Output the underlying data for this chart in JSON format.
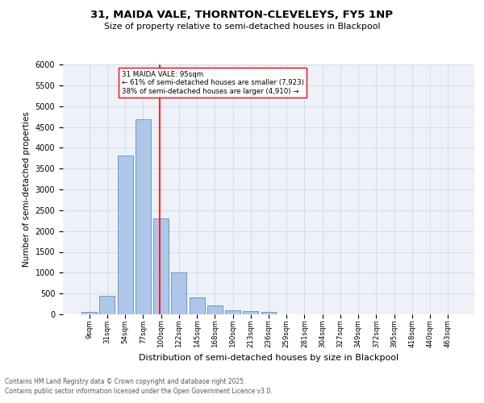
{
  "title1": "31, MAIDA VALE, THORNTON-CLEVELEYS, FY5 1NP",
  "title2": "Size of property relative to semi-detached houses in Blackpool",
  "xlabel": "Distribution of semi-detached houses by size in Blackpool",
  "ylabel": "Number of semi-detached properties",
  "categories": [
    "9sqm",
    "31sqm",
    "54sqm",
    "77sqm",
    "100sqm",
    "122sqm",
    "145sqm",
    "168sqm",
    "190sqm",
    "213sqm",
    "236sqm",
    "259sqm",
    "281sqm",
    "304sqm",
    "327sqm",
    "349sqm",
    "372sqm",
    "395sqm",
    "418sqm",
    "440sqm",
    "463sqm"
  ],
  "values": [
    50,
    440,
    3820,
    4680,
    2300,
    1000,
    410,
    210,
    90,
    70,
    50,
    0,
    0,
    0,
    0,
    0,
    0,
    0,
    0,
    0,
    0
  ],
  "bar_color": "#aec6e8",
  "bar_edge_color": "#5a8fc4",
  "annotation_label": "31 MAIDA VALE: 95sqm",
  "annotation_line1": "← 61% of semi-detached houses are smaller (7,923)",
  "annotation_line2": "38% of semi-detached houses are larger (4,910) →",
  "ylim": [
    0,
    6000
  ],
  "yticks": [
    0,
    500,
    1000,
    1500,
    2000,
    2500,
    3000,
    3500,
    4000,
    4500,
    5000,
    5500,
    6000
  ],
  "grid_color": "#d0d8e8",
  "bg_color": "#eef2f8",
  "footer1": "Contains HM Land Registry data © Crown copyright and database right 2025.",
  "footer2": "Contains public sector information licensed under the Open Government Licence v3.0."
}
